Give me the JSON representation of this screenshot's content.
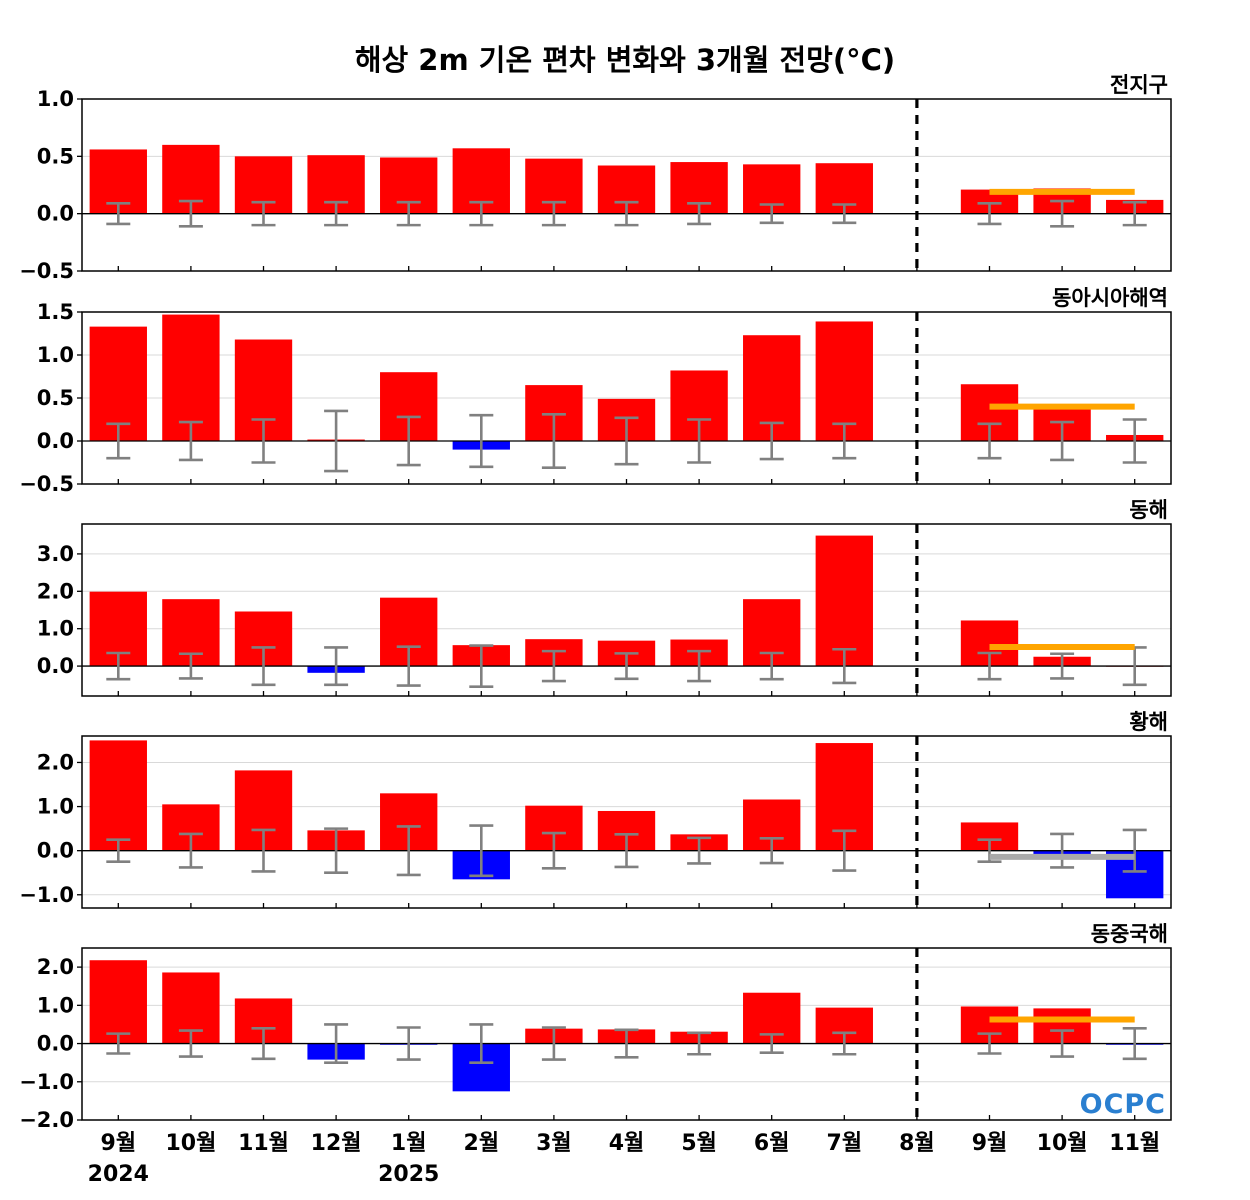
{
  "title": "해상 2m 기온 편차 변화와 3개월 전망(°C)",
  "logo": "OCPC",
  "colors": {
    "positive": "#ff0000",
    "negative": "#0000ff",
    "errorbar": "#808080",
    "forecast_line": "#ffa500",
    "forecast_line_neutral": "#a9a9a9",
    "divider": "#000000",
    "grid": "#d9d9d9"
  },
  "chart_data": {
    "type": "bar",
    "categories": [
      "9월",
      "10월",
      "11월",
      "12월",
      "1월",
      "2월",
      "3월",
      "4월",
      "5월",
      "6월",
      "7월",
      "8월",
      "9월",
      "10월",
      "11월"
    ],
    "year_labels": [
      {
        "index": 0,
        "label": "2024"
      },
      {
        "index": 4,
        "label": "2025"
      }
    ],
    "forecast_divider_index": 11,
    "panels": [
      {
        "name": "전지구",
        "ylim": [
          -0.5,
          1.0
        ],
        "yticks": [
          -0.5,
          0.0,
          0.5,
          1.0
        ],
        "yticklabels": [
          "−0.5",
          "0.0",
          "0.5",
          "1.0"
        ],
        "values": [
          0.56,
          0.6,
          0.5,
          0.51,
          0.49,
          0.57,
          0.48,
          0.42,
          0.45,
          0.43,
          0.44,
          0.0,
          0.21,
          0.22,
          0.12
        ],
        "error": [
          0.09,
          0.11,
          0.1,
          0.1,
          0.1,
          0.1,
          0.1,
          0.1,
          0.09,
          0.08,
          0.08,
          0.0,
          0.09,
          0.11,
          0.1
        ],
        "forecast_mean": 0.19,
        "forecast_color": "orange"
      },
      {
        "name": "동아시아해역",
        "ylim": [
          -0.5,
          1.5
        ],
        "yticks": [
          -0.5,
          0.0,
          0.5,
          1.0,
          1.5
        ],
        "yticklabels": [
          "−0.5",
          "0.0",
          "0.5",
          "1.0",
          "1.5"
        ],
        "values": [
          1.33,
          1.47,
          1.18,
          0.01,
          0.8,
          -0.1,
          0.65,
          0.49,
          0.82,
          1.23,
          1.39,
          0.0,
          0.66,
          0.4,
          0.07
        ],
        "error": [
          0.2,
          0.22,
          0.25,
          0.35,
          0.28,
          0.3,
          0.31,
          0.27,
          0.25,
          0.21,
          0.2,
          0.0,
          0.2,
          0.22,
          0.25
        ],
        "forecast_mean": 0.4,
        "forecast_color": "orange"
      },
      {
        "name": "동해",
        "ylim": [
          -0.8,
          3.8
        ],
        "yticks": [
          0.0,
          1.0,
          2.0,
          3.0
        ],
        "yticklabels": [
          "0.0",
          "1.0",
          "2.0",
          "3.0"
        ],
        "values": [
          1.99,
          1.79,
          1.46,
          -0.18,
          1.83,
          0.56,
          0.72,
          0.68,
          0.71,
          1.79,
          3.49,
          0.0,
          1.22,
          0.25,
          0.0
        ],
        "error": [
          0.35,
          0.33,
          0.5,
          0.5,
          0.52,
          0.55,
          0.4,
          0.34,
          0.4,
          0.35,
          0.45,
          0.0,
          0.35,
          0.33,
          0.5
        ],
        "forecast_mean": 0.51,
        "forecast_color": "orange"
      },
      {
        "name": "황해",
        "ylim": [
          -1.3,
          2.6
        ],
        "yticks": [
          -1.0,
          0.0,
          1.0,
          2.0
        ],
        "yticklabels": [
          "−1.0",
          "0.0",
          "1.0",
          "2.0"
        ],
        "values": [
          2.5,
          1.05,
          1.82,
          0.46,
          1.3,
          -0.65,
          1.02,
          0.9,
          0.37,
          1.16,
          2.44,
          0.0,
          0.64,
          -0.1,
          -1.08
        ],
        "error": [
          0.25,
          0.38,
          0.47,
          0.5,
          0.55,
          0.57,
          0.4,
          0.37,
          0.29,
          0.28,
          0.45,
          0.0,
          0.25,
          0.38,
          0.47
        ],
        "forecast_mean": -0.14,
        "forecast_color": "gray"
      },
      {
        "name": "동중국해",
        "ylim": [
          -2.0,
          2.5
        ],
        "yticks": [
          -2.0,
          -1.0,
          0.0,
          1.0,
          2.0
        ],
        "yticklabels": [
          "−2.0",
          "−1.0",
          "0.0",
          "1.0",
          "2.0"
        ],
        "values": [
          2.18,
          1.86,
          1.18,
          -0.42,
          -0.02,
          -1.25,
          0.39,
          0.37,
          0.31,
          1.33,
          0.94,
          0.0,
          0.97,
          0.92,
          -0.02
        ],
        "error": [
          0.26,
          0.34,
          0.4,
          0.5,
          0.42,
          0.5,
          0.42,
          0.36,
          0.28,
          0.24,
          0.28,
          0.0,
          0.26,
          0.34,
          0.4
        ],
        "forecast_mean": 0.63,
        "forecast_color": "orange"
      }
    ]
  }
}
